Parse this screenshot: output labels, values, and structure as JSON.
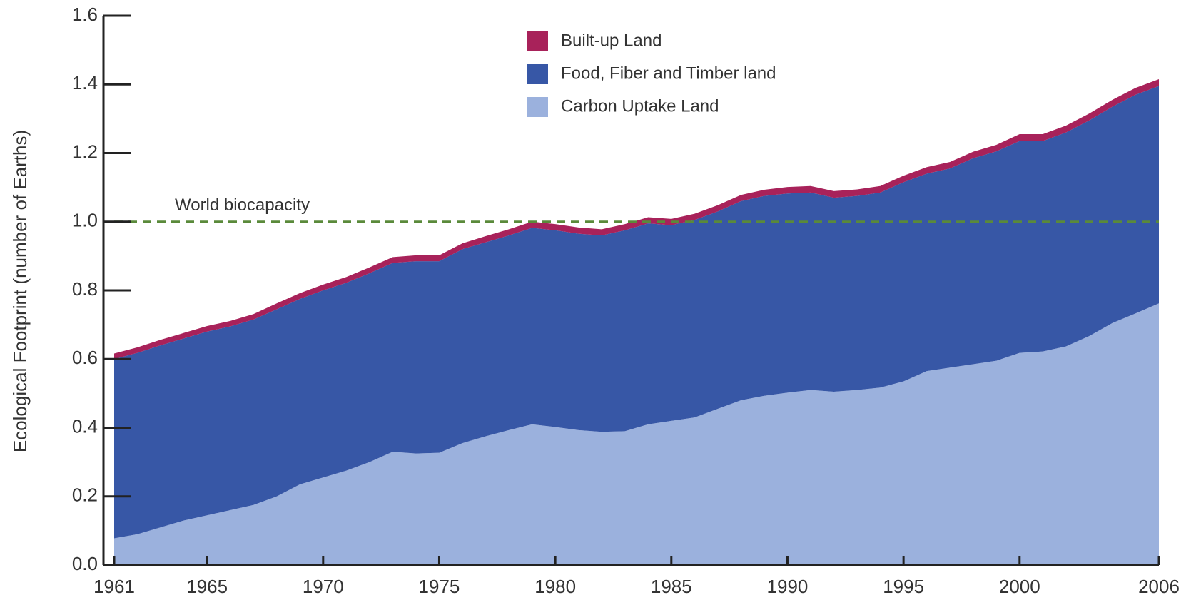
{
  "chart_data": {
    "type": "stacked_area",
    "y_label": "Ecological Footprint (number of Earths)",
    "x": [
      1961,
      1962,
      1963,
      1964,
      1965,
      1966,
      1967,
      1968,
      1969,
      1970,
      1971,
      1972,
      1973,
      1974,
      1975,
      1976,
      1977,
      1978,
      1979,
      1980,
      1981,
      1982,
      1983,
      1984,
      1985,
      1986,
      1987,
      1988,
      1989,
      1990,
      1991,
      1992,
      1993,
      1994,
      1995,
      1996,
      1997,
      1998,
      1999,
      2000,
      2001,
      2002,
      2003,
      2004,
      2005,
      2006
    ],
    "series": [
      {
        "name": "Carbon Uptake Land",
        "color": "#9bb1dd",
        "values": [
          0.078,
          0.09,
          0.11,
          0.13,
          0.145,
          0.16,
          0.175,
          0.2,
          0.235,
          0.255,
          0.275,
          0.3,
          0.33,
          0.325,
          0.327,
          0.355,
          0.375,
          0.393,
          0.41,
          0.402,
          0.393,
          0.388,
          0.39,
          0.41,
          0.42,
          0.43,
          0.455,
          0.48,
          0.493,
          0.502,
          0.51,
          0.505,
          0.51,
          0.517,
          0.535,
          0.565,
          0.575,
          0.585,
          0.595,
          0.618,
          0.622,
          0.637,
          0.667,
          0.705,
          0.733,
          0.762
        ]
      },
      {
        "name": "Food, Fiber and Timber land",
        "color": "#3757a6",
        "values": [
          0.522,
          0.528,
          0.53,
          0.53,
          0.535,
          0.535,
          0.54,
          0.545,
          0.54,
          0.545,
          0.547,
          0.55,
          0.55,
          0.56,
          0.558,
          0.565,
          0.565,
          0.567,
          0.572,
          0.573,
          0.572,
          0.572,
          0.585,
          0.585,
          0.57,
          0.575,
          0.575,
          0.58,
          0.582,
          0.58,
          0.575,
          0.565,
          0.565,
          0.568,
          0.58,
          0.575,
          0.58,
          0.6,
          0.61,
          0.617,
          0.613,
          0.623,
          0.628,
          0.63,
          0.637,
          0.633
        ]
      },
      {
        "name": "Built-up Land",
        "color": "#a8225a",
        "values": [
          0.016,
          0.016,
          0.016,
          0.016,
          0.016,
          0.016,
          0.016,
          0.017,
          0.017,
          0.017,
          0.017,
          0.017,
          0.017,
          0.017,
          0.017,
          0.017,
          0.018,
          0.018,
          0.018,
          0.018,
          0.018,
          0.018,
          0.018,
          0.018,
          0.018,
          0.018,
          0.018,
          0.018,
          0.018,
          0.019,
          0.019,
          0.019,
          0.019,
          0.019,
          0.019,
          0.019,
          0.019,
          0.019,
          0.019,
          0.02,
          0.02,
          0.02,
          0.02,
          0.02,
          0.02,
          0.02
        ]
      }
    ],
    "xlim": [
      1961,
      2006
    ],
    "xticks": [
      1961,
      1965,
      1970,
      1975,
      1980,
      1985,
      1990,
      1995,
      2000,
      2006
    ],
    "ylim": [
      0,
      1.6
    ],
    "yticks": [
      {
        "value": 0,
        "label": "0.0"
      },
      {
        "value": 0.2,
        "label": "0.2"
      },
      {
        "value": 0.4,
        "label": "0.4"
      },
      {
        "value": 0.6,
        "label": "0.6"
      },
      {
        "value": 0.8,
        "label": "0.8"
      },
      {
        "value": 1,
        "label": "1.0"
      },
      {
        "value": 1.2,
        "label": "1.2"
      },
      {
        "value": 1.4,
        "label": "1.4"
      },
      {
        "value": 1.6,
        "label": "1.6"
      }
    ],
    "reference_line": {
      "label": "World biocapacity",
      "value": 1,
      "color": "#5a8a3a"
    }
  }
}
